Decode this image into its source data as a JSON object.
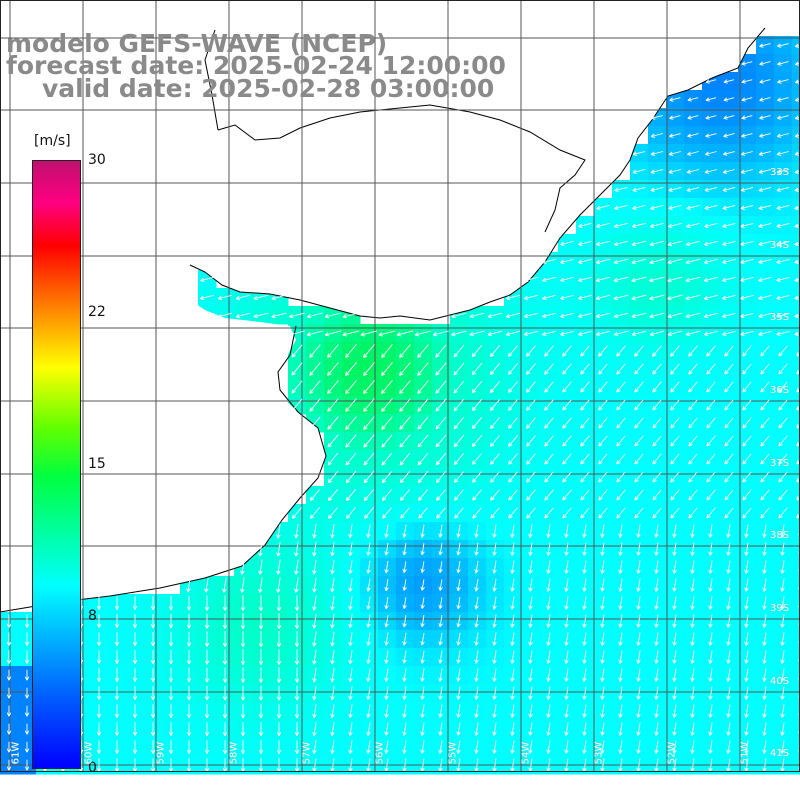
{
  "title": {
    "line1": "modelo GEFS-WAVE (NCEP)",
    "line2": "forecast date: 2025-02-24 12:00:00",
    "line3": "valid date: 2025-02-28 03:00:00"
  },
  "colorbar": {
    "unit": "[m/s]",
    "ticks": [
      "30",
      "22",
      "15",
      "8",
      "0"
    ],
    "tick_values": [
      30,
      22,
      15,
      8,
      0
    ],
    "range": [
      0,
      30
    ],
    "colors": [
      "#0000ff",
      "#00b8ff",
      "#00ffff",
      "#00ff40",
      "#ffff00",
      "#ff8000",
      "#ff0000",
      "#c01070"
    ]
  },
  "map": {
    "variable": "wind speed and direction",
    "lat_labels": [
      "33S",
      "34S",
      "35S",
      "36S",
      "37S",
      "38S",
      "39S",
      "40S",
      "41S"
    ],
    "lon_labels": [
      "61W",
      "60W",
      "59W",
      "58W",
      "57W",
      "56W",
      "55W",
      "54W",
      "53W",
      "52W",
      "51W"
    ],
    "colors": {
      "land": "#ffffff",
      "coast": "#000000",
      "grid": "#555555",
      "arrows": "#ffffff",
      "calm": "#00b4ff",
      "moderate": "#00ffff",
      "strong": "#00e000"
    }
  }
}
